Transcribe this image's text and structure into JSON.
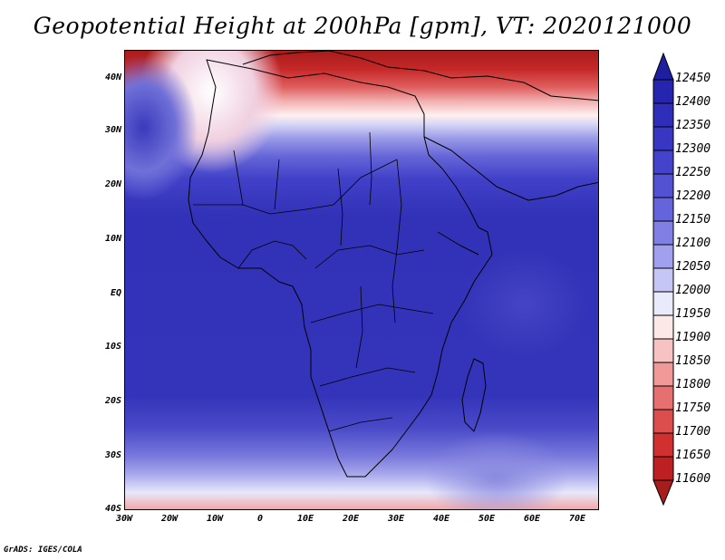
{
  "title": "Geopotential Height at 200hPa [gpm], VT: 2020121000",
  "footer": "GrADS: IGES/COLA",
  "map": {
    "lat_labels": [
      "40N",
      "30N",
      "20N",
      "10N",
      "EQ",
      "10S",
      "20S",
      "30S",
      "40S"
    ],
    "lon_labels": [
      "30W",
      "20W",
      "10W",
      "0",
      "10E",
      "20E",
      "30E",
      "40E",
      "50E",
      "60E",
      "70E"
    ],
    "lat_range": [
      -40,
      45
    ],
    "lon_range": [
      -30,
      75
    ],
    "field": "geopotential height 200hPa",
    "colormap": "blue-white-red"
  },
  "colorbar": {
    "labels": [
      "12450",
      "12400",
      "12350",
      "12300",
      "12250",
      "12200",
      "12150",
      "12100",
      "12050",
      "12000",
      "11950",
      "11900",
      "11850",
      "11800",
      "11750",
      "11700",
      "11650",
      "11600"
    ],
    "colors": [
      "#1e1ea0",
      "#2525b0",
      "#2e2eba",
      "#3737c3",
      "#4343cb",
      "#5252d2",
      "#6565db",
      "#8080e4",
      "#a0a0ee",
      "#c6c6f6",
      "#eaeafd",
      "#fde8e8",
      "#f7c2c2",
      "#ef9999",
      "#e67070",
      "#dc4d4d",
      "#d03030",
      "#bd2020",
      "#a81c1c"
    ]
  }
}
